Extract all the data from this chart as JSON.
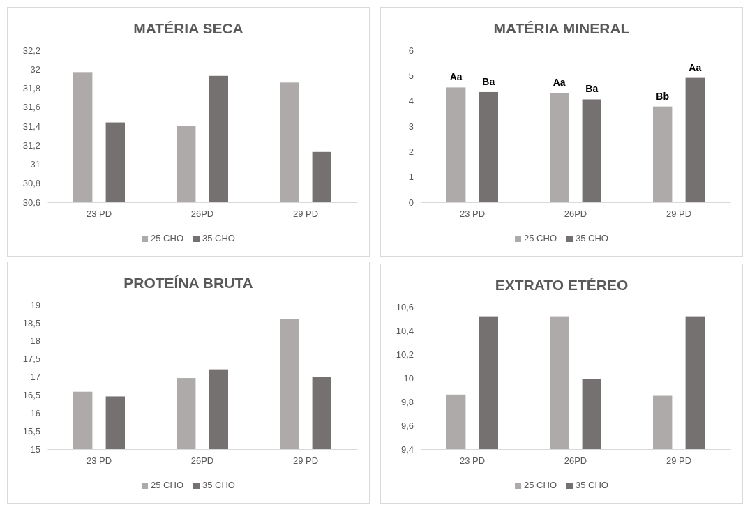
{
  "chart_data": [
    {
      "type": "bar",
      "title": "MATÉRIA SECA",
      "categories": [
        "23 PD",
        "26PD",
        "29 PD"
      ],
      "series": [
        {
          "name": "25 CHO",
          "color": "#aeaaaa",
          "values": [
            31.97,
            31.4,
            31.86
          ]
        },
        {
          "name": "35 CHO",
          "color": "#767171",
          "values": [
            31.44,
            31.93,
            31.13
          ]
        }
      ],
      "ylim": [
        30.6,
        32.2
      ],
      "yticks": [
        {
          "value": 30.6,
          "label": "30,6"
        },
        {
          "value": 30.8,
          "label": "30,8"
        },
        {
          "value": 31,
          "label": "31"
        },
        {
          "value": 31.2,
          "label": "31,2"
        },
        {
          "value": 31.4,
          "label": "31,4"
        },
        {
          "value": 31.6,
          "label": "31,6"
        },
        {
          "value": 31.8,
          "label": "31,8"
        },
        {
          "value": 32,
          "label": "32"
        },
        {
          "value": 32.2,
          "label": "32,2"
        }
      ],
      "grid": false,
      "legend": "bottom"
    },
    {
      "type": "bar",
      "title": "MATÉRIA MINERAL",
      "categories": [
        "23 PD",
        "26PD",
        "29 PD"
      ],
      "series": [
        {
          "name": "25 CHO",
          "color": "#aeaaaa",
          "values": [
            4.53,
            4.32,
            3.78
          ],
          "value_labels": [
            "Aa",
            "Aa",
            "Bb"
          ]
        },
        {
          "name": "35 CHO",
          "color": "#767171",
          "values": [
            4.35,
            4.06,
            4.91
          ],
          "value_labels": [
            "Ba",
            "Ba",
            "Aa"
          ]
        }
      ],
      "ylim": [
        0,
        6
      ],
      "yticks": [
        0,
        1,
        2,
        3,
        4,
        5,
        6
      ],
      "grid": false,
      "legend": "bottom"
    },
    {
      "type": "bar",
      "title": "PROTEÍNA BRUTA",
      "categories": [
        "23 PD",
        "26PD",
        "29 PD"
      ],
      "series": [
        {
          "name": "25 CHO",
          "color": "#aeaaaa",
          "values": [
            16.59,
            16.97,
            18.61
          ]
        },
        {
          "name": "35 CHO",
          "color": "#767171",
          "values": [
            16.46,
            17.21,
            16.99
          ]
        }
      ],
      "ylim": [
        15,
        19
      ],
      "yticks": [
        15,
        {
          "value": 15.5,
          "label": "15,5"
        },
        16,
        {
          "value": 16.5,
          "label": "16,5"
        },
        17,
        {
          "value": 17.5,
          "label": "17,5"
        },
        18,
        {
          "value": 18.5,
          "label": "18,5"
        },
        19
      ],
      "grid": false,
      "legend": "bottom"
    },
    {
      "type": "bar",
      "title": "EXTRATO ETÉREO",
      "categories": [
        "23 PD",
        "26PD",
        "29 PD"
      ],
      "series": [
        {
          "name": "25 CHO",
          "color": "#aeaaaa",
          "values": [
            9.86,
            10.52,
            9.85
          ]
        },
        {
          "name": "35 CHO",
          "color": "#767171",
          "values": [
            10.52,
            9.99,
            10.52
          ]
        }
      ],
      "ylim": [
        9.4,
        10.6
      ],
      "yticks": [
        {
          "value": 9.4,
          "label": "9,4"
        },
        {
          "value": 9.6,
          "label": "9,6"
        },
        {
          "value": 9.8,
          "label": "9,8"
        },
        10,
        {
          "value": 10.2,
          "label": "10,2"
        },
        {
          "value": 10.4,
          "label": "10,4"
        },
        {
          "value": 10.6,
          "label": "10,6"
        }
      ],
      "grid": false,
      "legend": "bottom"
    }
  ]
}
